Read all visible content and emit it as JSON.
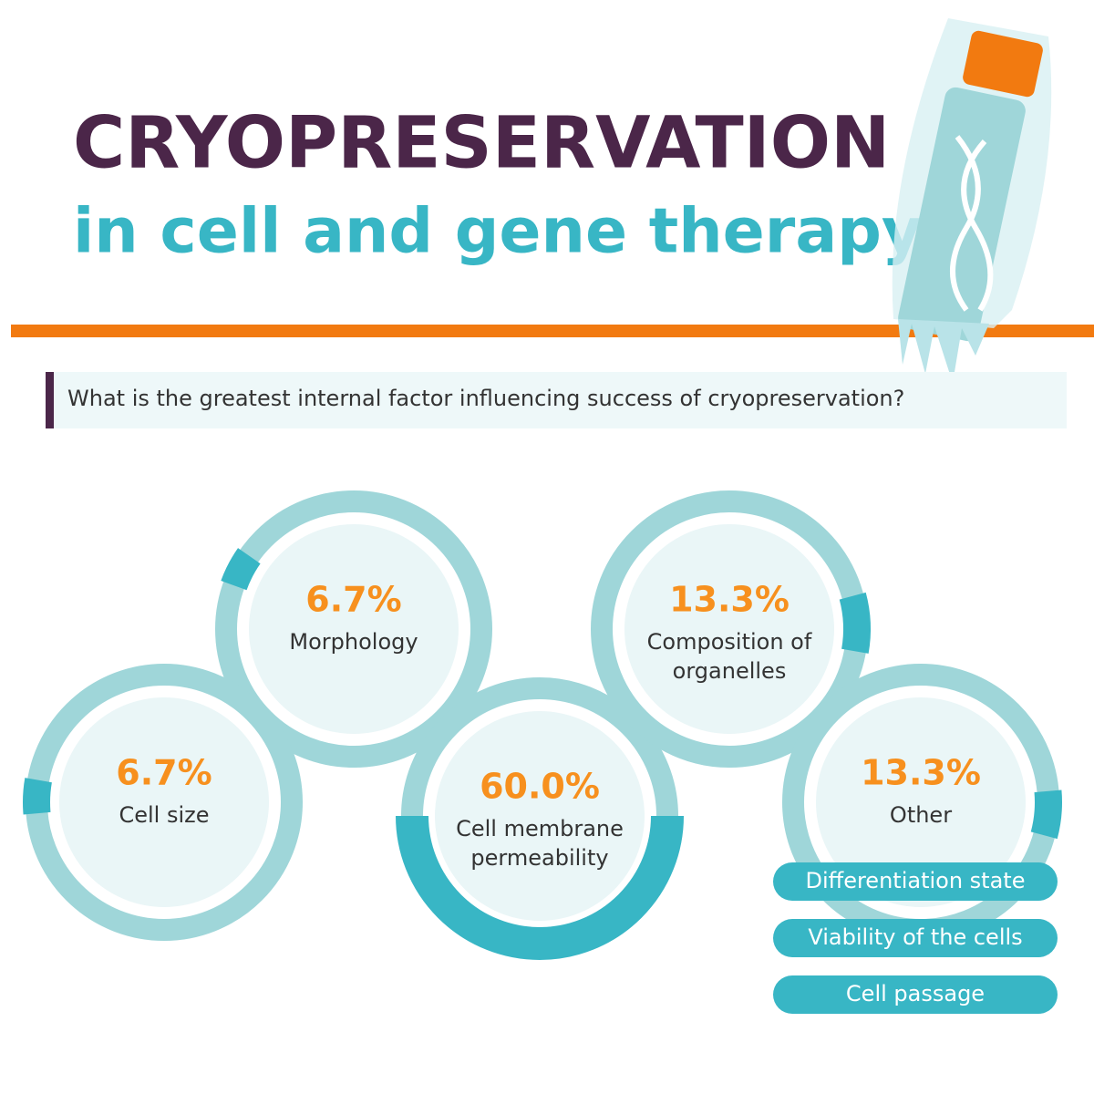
{
  "header": {
    "title": "CRYOPRESERVATION",
    "subtitle": "in cell and gene therapy"
  },
  "question": "What is the greatest internal factor influencing success of cryopreservation?",
  "factors": [
    {
      "percent": "6.7%",
      "label": [
        "Morphology"
      ]
    },
    {
      "percent": "6.7%",
      "label": [
        "Cell size"
      ]
    },
    {
      "percent": "60.0%",
      "label": [
        "Cell membrane",
        "permeability"
      ]
    },
    {
      "percent": "13.3%",
      "label": [
        "Composition of",
        "organelles"
      ]
    },
    {
      "percent": "13.3%",
      "label": [
        "Other"
      ]
    }
  ],
  "other_items": [
    "Differentiation state",
    "Viability of the cells",
    "Cell passage"
  ]
}
